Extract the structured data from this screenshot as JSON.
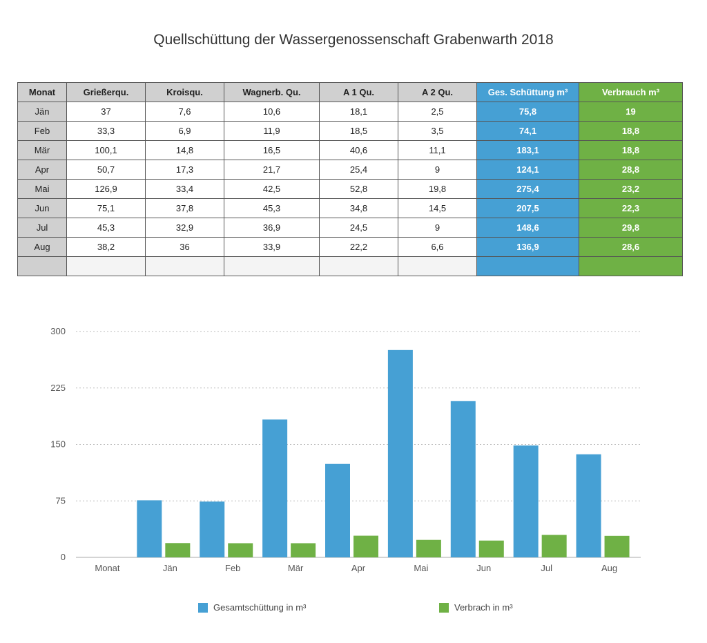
{
  "title": "Quellschüttung der Wassergenossenschaft Grabenwarth 2018",
  "colors": {
    "ges": "#46a0d4",
    "ver": "#6fb145",
    "header": "#d0d0d0"
  },
  "table": {
    "headers": [
      "Monat",
      "Grießerqu.",
      "Kroisqu.",
      "Wagnerb. Qu.",
      "A 1 Qu.",
      "A 2 Qu.",
      "Ges. Schüttung m³",
      "Verbrauch m³"
    ],
    "rows": [
      [
        "Jän",
        "37",
        "7,6",
        "10,6",
        "18,1",
        "2,5",
        "75,8",
        "19"
      ],
      [
        "Feb",
        "33,3",
        "6,9",
        "11,9",
        "18,5",
        "3,5",
        "74,1",
        "18,8"
      ],
      [
        "Mär",
        "100,1",
        "14,8",
        "16,5",
        "40,6",
        "11,1",
        "183,1",
        "18,8"
      ],
      [
        "Apr",
        "50,7",
        "17,3",
        "21,7",
        "25,4",
        "9",
        "124,1",
        "28,8"
      ],
      [
        "Mai",
        "126,9",
        "33,4",
        "42,5",
        "52,8",
        "19,8",
        "275,4",
        "23,2"
      ],
      [
        "Jun",
        "75,1",
        "37,8",
        "45,3",
        "34,8",
        "14,5",
        "207,5",
        "22,3"
      ],
      [
        "Jul",
        "45,3",
        "32,9",
        "36,9",
        "24,5",
        "9",
        "148,6",
        "29,8"
      ],
      [
        "Aug",
        "38,2",
        "36",
        "33,9",
        "22,2",
        "6,6",
        "136,9",
        "28,6"
      ],
      [
        "",
        "",
        "",
        "",
        "",
        "",
        "",
        ""
      ]
    ]
  },
  "chart_data": {
    "type": "bar",
    "categories": [
      "Monat",
      "Jän",
      "Feb",
      "Mär",
      "Apr",
      "Mai",
      "Jun",
      "Jul",
      "Aug"
    ],
    "series": [
      {
        "name": "Gesamtschüttung in m³",
        "color": "#46a0d4",
        "values": [
          null,
          75.8,
          74.1,
          183.1,
          124.1,
          275.4,
          207.5,
          148.6,
          136.9
        ]
      },
      {
        "name": "Verbrach in m³",
        "color": "#6fb145",
        "values": [
          null,
          19,
          18.8,
          18.8,
          28.8,
          23.2,
          22.3,
          29.8,
          28.6
        ]
      }
    ],
    "yticks": [
      0,
      75,
      150,
      225,
      300
    ],
    "ylim": [
      0,
      300
    ],
    "grid": true,
    "legend": "bottom"
  }
}
